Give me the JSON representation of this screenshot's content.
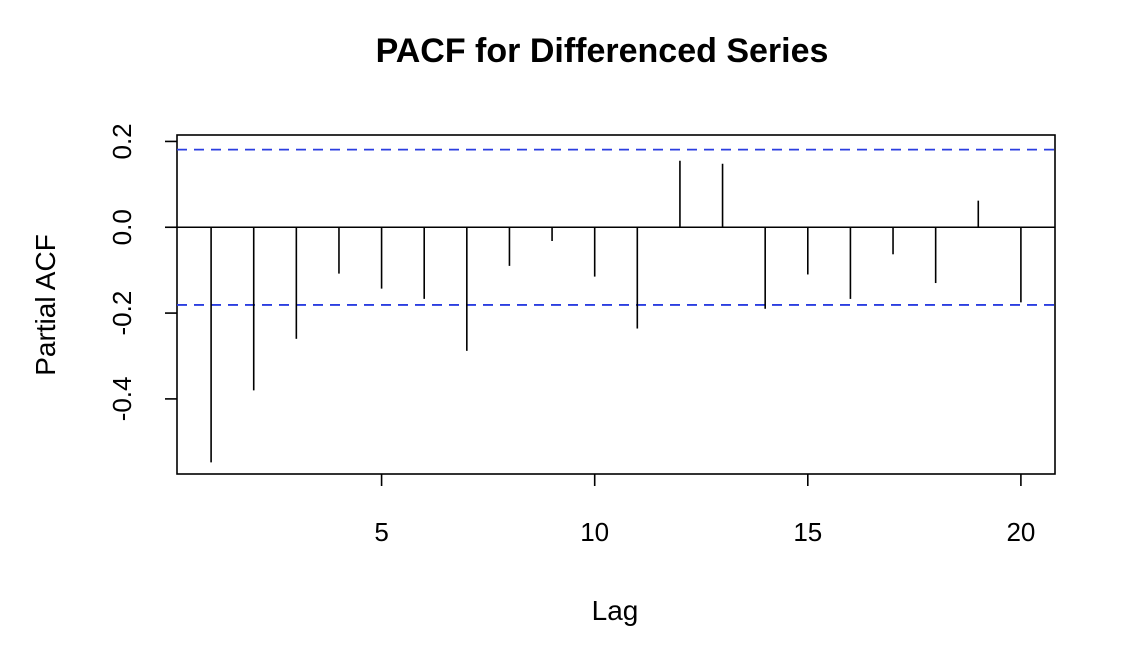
{
  "chart_data": {
    "type": "bar",
    "title": "PACF for Differenced Series",
    "xlabel": "Lag",
    "ylabel": "Partial ACF",
    "xlim": [
      0.2,
      20.8
    ],
    "ylim": [
      -0.575,
      0.215
    ],
    "x_ticks": [
      5,
      10,
      15,
      20
    ],
    "y_ticks": [
      -0.4,
      -0.2,
      0.0,
      0.2
    ],
    "y_tick_labels": [
      "-0.4",
      "-0.2",
      "0.0",
      "0.2"
    ],
    "x_tick_labels": [
      "5",
      "10",
      "15",
      "20"
    ],
    "lags": [
      1,
      2,
      3,
      4,
      5,
      6,
      7,
      8,
      9,
      10,
      11,
      12,
      13,
      14,
      15,
      16,
      17,
      18,
      19,
      20
    ],
    "values": [
      -0.548,
      -0.38,
      -0.26,
      -0.108,
      -0.143,
      -0.167,
      -0.288,
      -0.09,
      -0.032,
      -0.115,
      -0.236,
      0.155,
      0.148,
      -0.19,
      -0.11,
      -0.167,
      -0.063,
      -0.13,
      0.062,
      -0.175
    ],
    "confidence_bound": 0.181,
    "confidence_color": "#2B3EE0",
    "bar_color": "#000000",
    "grid": false
  }
}
